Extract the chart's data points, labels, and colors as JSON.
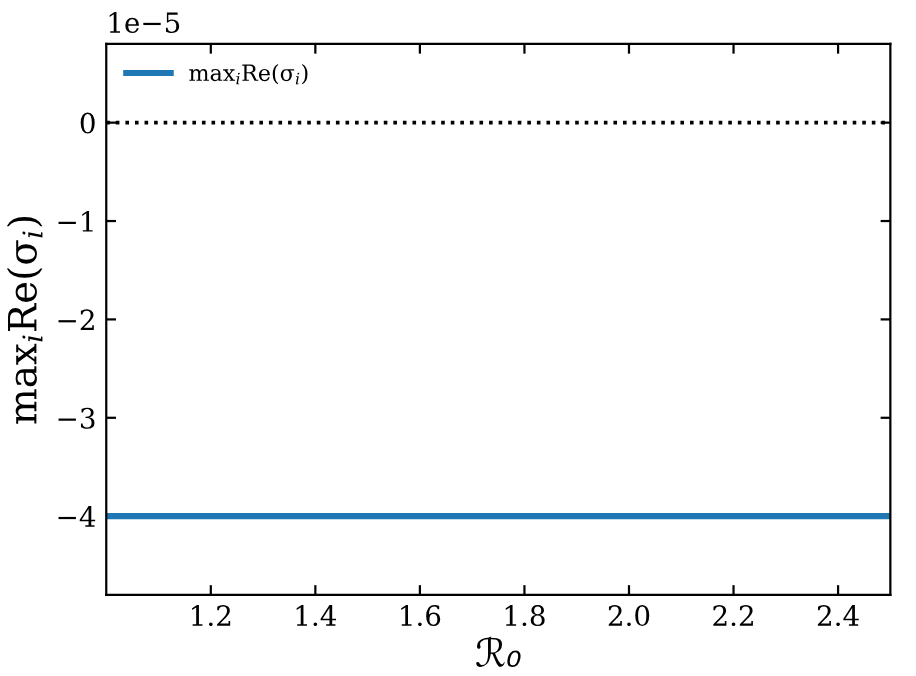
{
  "chart_data": {
    "type": "line",
    "xlabel": "ℛ₀",
    "ylabel": "max$_{i}$Re(σ$_{i}$)",
    "x": [
      1.0,
      2.5
    ],
    "series": [
      {
        "name": "max$_{i}$Re(σ$_{i}$)",
        "color": "#1f77b4",
        "values": [
          -4,
          -4
        ]
      }
    ],
    "xlim": [
      1.0,
      2.5
    ],
    "xticks": [
      1.2,
      1.4,
      1.6,
      1.8,
      {
        "value": 2.0,
        "label": "2.0"
      },
      2.2,
      2.4
    ],
    "ylim": [
      -4.8,
      0.8
    ],
    "yticks": [
      0,
      -1,
      -2,
      -3,
      -4
    ],
    "ref_lines": [
      {
        "axis": "y",
        "value": 0,
        "color": "#000000",
        "line_style": "dotted"
      }
    ],
    "annotations": [
      "1e−5"
    ],
    "legend": "top left",
    "grid": false,
    "marker": "none",
    "line_style": "solid"
  }
}
